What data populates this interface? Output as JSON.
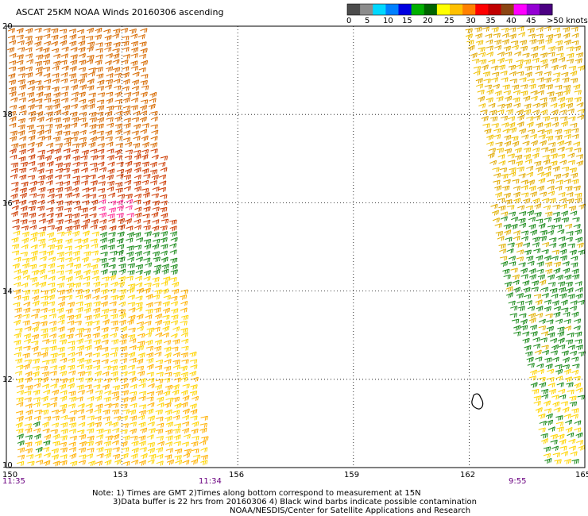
{
  "title": "ASCAT 25KM NOAA Winds 20160306 ascending",
  "colorbar": {
    "labels": [
      "0",
      "5",
      "10",
      "15",
      "20",
      "25",
      "30",
      "35",
      "40",
      "45",
      ">50 knots"
    ],
    "colors": [
      "#4c4c4c",
      "#8c8c8c",
      "#00d8ff",
      "#0080ff",
      "#0000e0",
      "#00b000",
      "#006400",
      "#ffff00",
      "#ffc000",
      "#ff8000",
      "#ff0000",
      "#c00000",
      "#8b4513",
      "#ff00ff",
      "#9400d3",
      "#4b0082"
    ]
  },
  "map": {
    "lon_range": [
      150,
      165
    ],
    "lat_range": [
      10,
      20
    ],
    "lat_ticks": [
      "20",
      "18",
      "16",
      "14",
      "12",
      "10"
    ],
    "lon_ticks": [
      "150",
      "153",
      "156",
      "159",
      "162",
      "165"
    ]
  },
  "pass_times": [
    "11:35",
    "11:34",
    "9:55"
  ],
  "notes": [
    "Note: 1) Times are GMT 2)Times along bottom correspond to measurement at 15N",
    "3)Data buffer is 22 hrs from 20160306 4) Black wind barbs indicate possible contamination",
    "NOAA/NESDIS/Center for Satellite Applications and Research"
  ]
}
